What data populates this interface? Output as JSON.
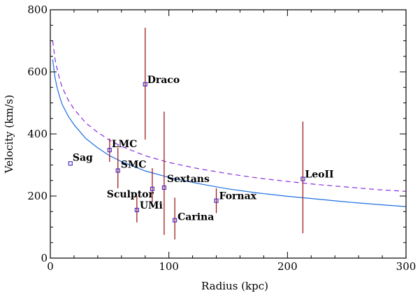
{
  "chart_data": {
    "type": "scatter",
    "title": "",
    "xlabel": "Radius (kpc)",
    "ylabel": "Velocity (km/s)",
    "xlim": [
      0,
      300
    ],
    "ylim": [
      0,
      800
    ],
    "xticks": [
      "0",
      "100",
      "200",
      "300"
    ],
    "yticks": [
      "0",
      "200",
      "400",
      "600",
      "800"
    ],
    "grid": false,
    "colors": {
      "point": "#4b2ec8",
      "errorbar": "#a01c1c",
      "solid_curve": "#1e6fe0",
      "dashed_curve": "#8a2be2"
    },
    "points": [
      {
        "name": "Sag",
        "x": 17,
        "y": 305,
        "ylow": 305,
        "yhigh": 305
      },
      {
        "name": "LMC",
        "x": 50,
        "y": 348,
        "ylow": 310,
        "yhigh": 385
      },
      {
        "name": "SMC",
        "x": 57,
        "y": 282,
        "ylow": 225,
        "yhigh": 355
      },
      {
        "name": "Draco",
        "x": 80,
        "y": 560,
        "ylow": 382,
        "yhigh": 742
      },
      {
        "name": "Sculptor",
        "x": 86,
        "y": 223,
        "ylow": 180,
        "yhigh": 290
      },
      {
        "name": "UMi",
        "x": 73,
        "y": 155,
        "ylow": 115,
        "yhigh": 200
      },
      {
        "name": "Sextans",
        "x": 96,
        "y": 227,
        "ylow": 75,
        "yhigh": 472
      },
      {
        "name": "Carina",
        "x": 105,
        "y": 122,
        "ylow": 60,
        "yhigh": 195
      },
      {
        "name": "Fornax",
        "x": 140,
        "y": 185,
        "ylow": 145,
        "yhigh": 225
      },
      {
        "name": "LeoII",
        "x": 213,
        "y": 255,
        "ylow": 80,
        "yhigh": 440
      }
    ],
    "series": [
      {
        "style": "solid",
        "x": [
          2,
          4,
          6,
          8,
          10,
          15,
          20,
          30,
          40,
          50,
          60,
          80,
          100,
          125,
          150,
          175,
          200,
          225,
          250,
          275,
          300
        ],
        "y": [
          640,
          580,
          545,
          518,
          495,
          458,
          430,
          385,
          355,
          330,
          311,
          281,
          260,
          240,
          223,
          210,
          199,
          190,
          181,
          173,
          166
        ]
      },
      {
        "style": "dashed",
        "x": [
          2,
          4,
          6,
          8,
          10,
          15,
          20,
          30,
          40,
          50,
          60,
          80,
          100,
          125,
          150,
          175,
          200,
          225,
          250,
          275,
          300
        ],
        "y": [
          700,
          640,
          605,
          575,
          550,
          510,
          480,
          435,
          405,
          380,
          360,
          330,
          308,
          288,
          272,
          258,
          247,
          237,
          229,
          221,
          215
        ]
      }
    ]
  }
}
